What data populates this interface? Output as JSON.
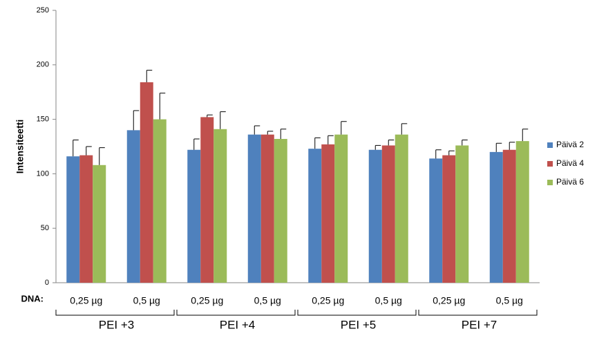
{
  "chart_data": {
    "type": "bar",
    "y_label": "Intensiteetti",
    "category_axis_label": "DNA:",
    "categories": [
      "0,25 µg",
      "0,5 µg",
      "0,25 µg",
      "0,5 µg",
      "0,25 µg",
      "0,5 µg",
      "0,25 µg",
      "0,5 µg"
    ],
    "groups": [
      "PEI +3",
      "PEI +4",
      "PEI +5",
      "PEI +7"
    ],
    "series": [
      {
        "name": "Päivä 2",
        "color": "#4f81bd",
        "values": [
          116,
          140,
          122,
          136,
          123,
          122,
          114,
          120
        ],
        "errors": [
          15,
          18,
          10,
          8,
          10,
          4,
          8,
          8
        ]
      },
      {
        "name": "Päivä 4",
        "color": "#c0504d",
        "values": [
          117,
          184,
          152,
          136,
          127,
          126,
          117,
          122
        ],
        "errors": [
          8,
          11,
          2,
          3,
          8,
          5,
          4,
          7
        ]
      },
      {
        "name": "Päivä 6",
        "color": "#9bbb59",
        "values": [
          108,
          150,
          141,
          132,
          136,
          136,
          126,
          130
        ],
        "errors": [
          16,
          24,
          16,
          9,
          12,
          10,
          5,
          11
        ]
      }
    ],
    "ylim": [
      0,
      250
    ],
    "yticks": [
      0,
      50,
      100,
      150,
      200,
      250
    ],
    "grid": false,
    "legend": "right"
  }
}
